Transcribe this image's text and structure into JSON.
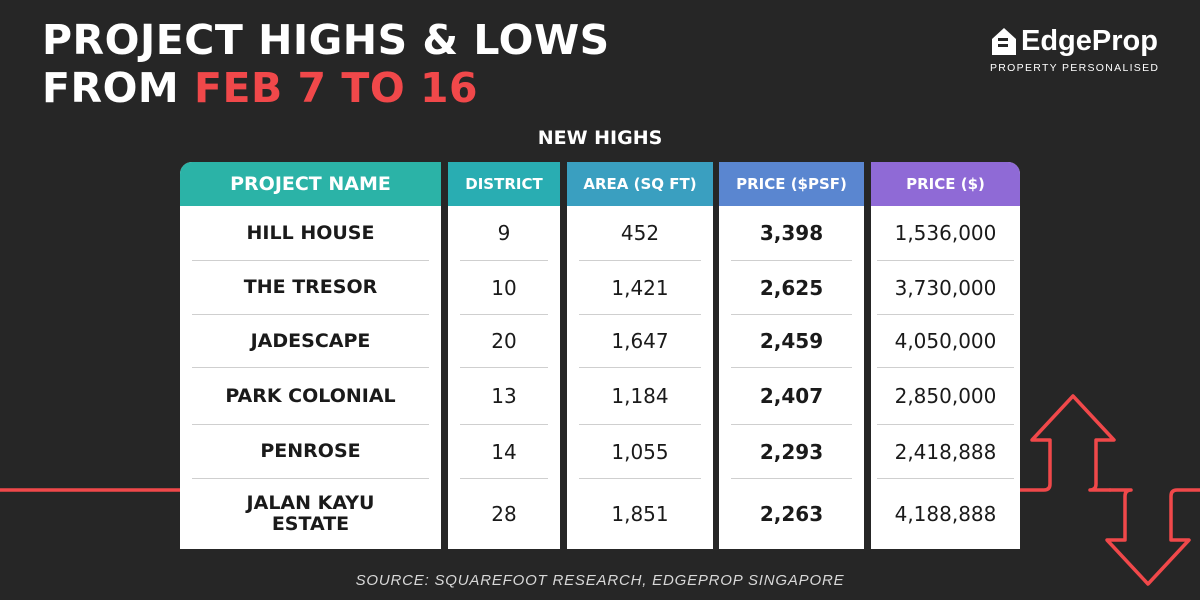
{
  "header": {
    "title_line1": "PROJECT HIGHS & LOWS",
    "title_line2_prefix": "FROM ",
    "title_line2_highlight": "FEB 7 TO 16"
  },
  "logo": {
    "wordmark": "EdgeProp",
    "tagline": "PROPERTY PERSONALISED"
  },
  "section_title": "NEW HIGHS",
  "table": {
    "columns": [
      "PROJECT NAME",
      "DISTRICT",
      "AREA (SQ FT)",
      "PRICE ($PSF)",
      "PRICE ($)"
    ],
    "header_colors": [
      "#2bb3a7",
      "#29adb2",
      "#3a9fc0",
      "#5a86d0",
      "#8f6ad6"
    ],
    "rows": [
      {
        "project": "HILL HOUSE",
        "district": "9",
        "area": "452",
        "psf": "3,398",
        "price": "1,536,000"
      },
      {
        "project": "THE TRESOR",
        "district": "10",
        "area": "1,421",
        "psf": "2,625",
        "price": "3,730,000"
      },
      {
        "project": "JADESCAPE",
        "district": "20",
        "area": "1,647",
        "psf": "2,459",
        "price": "4,050,000"
      },
      {
        "project": "PARK COLONIAL",
        "district": "13",
        "area": "1,184",
        "psf": "2,407",
        "price": "2,850,000"
      },
      {
        "project": "PENROSE",
        "district": "14",
        "area": "1,055",
        "psf": "2,293",
        "price": "2,418,888"
      },
      {
        "project": "JALAN KAYU ESTATE",
        "district": "28",
        "area": "1,851",
        "psf": "2,263",
        "price": "4,188,888"
      }
    ]
  },
  "source": "SOURCE: SQUAREFOOT RESEARCH, EDGEPROP SINGAPORE",
  "colors": {
    "background": "#262626",
    "accent_red": "#f0484a"
  }
}
